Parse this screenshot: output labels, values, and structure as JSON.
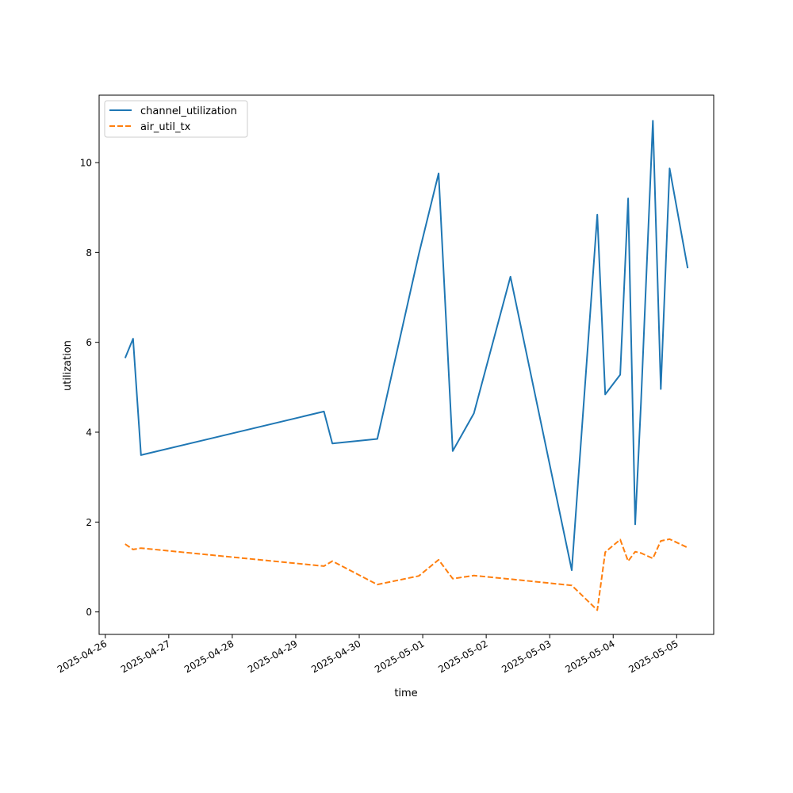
{
  "chart_data": {
    "type": "line",
    "title": "",
    "xlabel": "time",
    "ylabel": "utilization",
    "xlim": [
      "2025-04-25T21:40",
      "2025-05-05T14:00"
    ],
    "ylim": [
      -0.5,
      11.5
    ],
    "xticks": [
      "2025-04-26",
      "2025-04-27",
      "2025-04-28",
      "2025-04-29",
      "2025-04-30",
      "2025-05-01",
      "2025-05-02",
      "2025-05-03",
      "2025-05-04",
      "2025-05-05"
    ],
    "yticks": [
      0,
      2,
      4,
      6,
      8,
      10
    ],
    "grid": false,
    "legend_position": "upper-left",
    "series": [
      {
        "name": "channel_utilization",
        "color": "#1f77b4",
        "style": "solid",
        "points": [
          {
            "x": "2025-04-26T07:30",
            "y": 5.65
          },
          {
            "x": "2025-04-26T10:30",
            "y": 6.08
          },
          {
            "x": "2025-04-26T13:30",
            "y": 3.49
          },
          {
            "x": "2025-04-29T10:40",
            "y": 4.46
          },
          {
            "x": "2025-04-29T13:50",
            "y": 3.75
          },
          {
            "x": "2025-04-30T06:50",
            "y": 3.85
          },
          {
            "x": "2025-04-30T22:30",
            "y": 7.96
          },
          {
            "x": "2025-05-01T06:00",
            "y": 9.76
          },
          {
            "x": "2025-05-01T11:20",
            "y": 3.58
          },
          {
            "x": "2025-05-01T19:20",
            "y": 4.42
          },
          {
            "x": "2025-05-02T09:10",
            "y": 7.46
          },
          {
            "x": "2025-05-03T08:20",
            "y": 0.93
          },
          {
            "x": "2025-05-03T18:00",
            "y": 8.84
          },
          {
            "x": "2025-05-03T21:00",
            "y": 4.84
          },
          {
            "x": "2025-05-04T02:40",
            "y": 5.28
          },
          {
            "x": "2025-05-04T05:40",
            "y": 9.2
          },
          {
            "x": "2025-05-04T08:20",
            "y": 1.95
          },
          {
            "x": "2025-05-04T10:30",
            "y": 4.65
          },
          {
            "x": "2025-05-04T15:00",
            "y": 10.93
          },
          {
            "x": "2025-05-04T18:00",
            "y": 4.96
          },
          {
            "x": "2025-05-04T21:20",
            "y": 9.87
          },
          {
            "x": "2025-05-05T04:10",
            "y": 7.65
          }
        ]
      },
      {
        "name": "air_util_tx",
        "color": "#ff7f0e",
        "style": "dashed",
        "points": [
          {
            "x": "2025-04-26T07:30",
            "y": 1.51
          },
          {
            "x": "2025-04-26T10:30",
            "y": 1.39
          },
          {
            "x": "2025-04-26T13:30",
            "y": 1.42
          },
          {
            "x": "2025-04-29T10:40",
            "y": 1.02
          },
          {
            "x": "2025-04-29T13:50",
            "y": 1.13
          },
          {
            "x": "2025-04-30T06:50",
            "y": 0.61
          },
          {
            "x": "2025-04-30T22:30",
            "y": 0.8
          },
          {
            "x": "2025-05-01T06:00",
            "y": 1.16
          },
          {
            "x": "2025-05-01T11:20",
            "y": 0.74
          },
          {
            "x": "2025-05-01T19:20",
            "y": 0.81
          },
          {
            "x": "2025-05-02T09:10",
            "y": 0.73
          },
          {
            "x": "2025-05-03T08:20",
            "y": 0.59
          },
          {
            "x": "2025-05-03T18:00",
            "y": 0.04
          },
          {
            "x": "2025-05-03T21:00",
            "y": 1.33
          },
          {
            "x": "2025-05-04T02:40",
            "y": 1.61
          },
          {
            "x": "2025-05-04T05:40",
            "y": 1.13
          },
          {
            "x": "2025-05-04T08:20",
            "y": 1.34
          },
          {
            "x": "2025-05-04T10:30",
            "y": 1.31
          },
          {
            "x": "2025-05-04T15:00",
            "y": 1.19
          },
          {
            "x": "2025-05-04T18:00",
            "y": 1.58
          },
          {
            "x": "2025-05-04T21:20",
            "y": 1.62
          },
          {
            "x": "2025-05-05T04:10",
            "y": 1.43
          }
        ]
      }
    ]
  }
}
